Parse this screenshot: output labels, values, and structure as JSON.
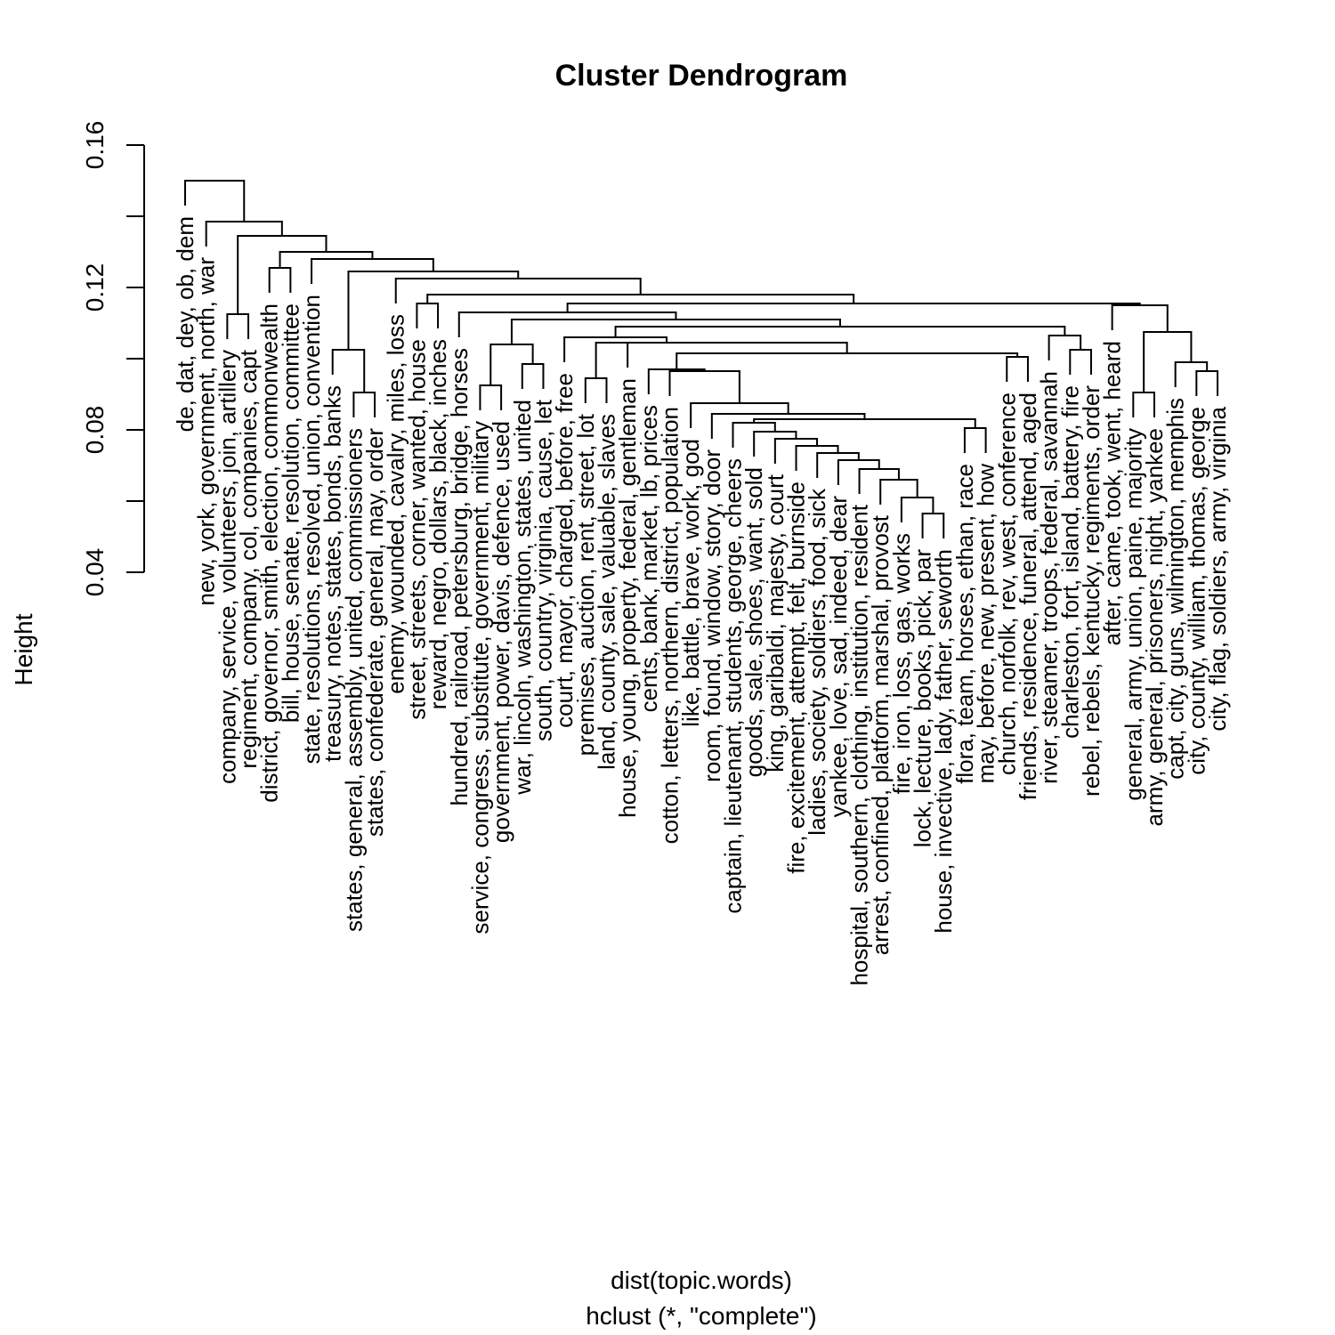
{
  "chart_data": {
    "type": "dendrogram",
    "title": "Cluster Dendrogram",
    "ylabel": "Height",
    "xlabel": "dist(topic.words)",
    "sublabel": "hclust (*, \"complete\")",
    "y_ticks": [
      "0.04",
      "0.08",
      "0.12",
      "0.16"
    ],
    "ylim": [
      0.04,
      0.16
    ],
    "leaves": [
      "de, dat, dey, ob, dem",
      "new, york, government, north, war",
      "company, service, volunteers, join, artillery",
      "regiment, company, col, companies, capt",
      "district, governor, smith, election, commonwealth",
      "bill, house, senate, resolution, committee",
      "state, resolutions, resolved, union, convention",
      "treasury, notes, states, bonds, banks",
      "states, general, assembly, united, commissioners",
      "states, confederate, general, may, order",
      "enemy, wounded, cavalry, miles, loss",
      "street, streets, corner, wanted, house",
      "reward, negro, dollars, black, inches",
      "hundred, railroad, petersburg, bridge, horses",
      "service, congress, substitute, government, military",
      "government, power, davis, defence, used",
      "war, lincoln, washington, states, united",
      "south, country, virginia, cause, let",
      "court, mayor, charged, before, free",
      "premises, auction, rent, street, lot",
      "land, county, sale, valuable, slaves",
      "house, young, property, federal, gentleman",
      "cents, bank, market, lb, prices",
      "cotton, letters, northern, district, population",
      "like, battle, brave, work, god",
      "room, found, window, story, door",
      "captain, lieutenant, students, george, cheers",
      "goods, sale, shoes, want, sold",
      "king, garibaldi, majesty, court",
      "fire, excitement, attempt, felt, burnside",
      "ladies, society, soldiers, food, sick",
      "yankee, love, sad, indeed, dear",
      "hospital, southern, clothing, institution, resident",
      "arrest, confined, platform, marshal, provost",
      "fire, iron, loss, gas, works",
      "lock, lecture, books, pick, par",
      "house, invective, lady, father, seworth",
      "flora, team, horses, ethan, race",
      "may, before, new, present, how",
      "church, norfolk, rev, west, conference",
      "friends, residence, funeral, attend, aged",
      "river, steamer, troops, federal, savannah",
      "charleston, fort, island, battery, fire",
      "rebel, rebels, kentucky, regiments, order",
      "after, came, took, went, heard",
      "general, army, union, paine, majority",
      "army, general, prisoners, night, yankee",
      "capt, city, guns, wilmington, memphis",
      "city, county, william, thomas, george",
      "city, flag, soldiers, army, virginia"
    ],
    "merges": [
      {
        "left": 35,
        "right": 36,
        "height": 0.0565
      },
      {
        "left": 34,
        "right": 50,
        "height": 0.061
      },
      {
        "left": 33,
        "right": 51,
        "height": 0.066
      },
      {
        "left": 32,
        "right": 52,
        "height": 0.069
      },
      {
        "left": 31,
        "right": 53,
        "height": 0.0715
      },
      {
        "left": 30,
        "right": 54,
        "height": 0.0735
      },
      {
        "left": 29,
        "right": 55,
        "height": 0.0755
      },
      {
        "left": 28,
        "right": 56,
        "height": 0.0775
      },
      {
        "left": 27,
        "right": 57,
        "height": 0.0795
      },
      {
        "left": 26,
        "right": 58,
        "height": 0.082
      },
      {
        "left": 37,
        "right": 38,
        "height": 0.0805
      },
      {
        "left": 59,
        "right": 60,
        "height": 0.083
      },
      {
        "left": 25,
        "right": 61,
        "height": 0.0845
      },
      {
        "left": 24,
        "right": 62,
        "height": 0.0875
      },
      {
        "left": 23,
        "right": 63,
        "height": 0.0965
      },
      {
        "left": 22,
        "right": 64,
        "height": 0.097
      },
      {
        "left": 39,
        "right": 40,
        "height": 0.1005
      },
      {
        "left": 65,
        "right": 66,
        "height": 0.1015
      },
      {
        "left": 21,
        "right": 67,
        "height": 0.1045
      },
      {
        "left": 19,
        "right": 20,
        "height": 0.0945
      },
      {
        "left": 68,
        "right": 69,
        "height": 0.1045
      },
      {
        "left": 18,
        "right": 70,
        "height": 0.106
      },
      {
        "left": 42,
        "right": 43,
        "height": 0.1025
      },
      {
        "left": 41,
        "right": 72,
        "height": 0.1065
      },
      {
        "left": 71,
        "right": 73,
        "height": 0.109
      },
      {
        "left": 14,
        "right": 15,
        "height": 0.0925
      },
      {
        "left": 16,
        "right": 17,
        "height": 0.0985
      },
      {
        "left": 75,
        "right": 76,
        "height": 0.104
      },
      {
        "left": 74,
        "right": 77,
        "height": 0.111
      },
      {
        "left": 13,
        "right": 78,
        "height": 0.113
      },
      {
        "left": 48,
        "right": 49,
        "height": 0.0965
      },
      {
        "left": 47,
        "right": 80,
        "height": 0.099
      },
      {
        "left": 45,
        "right": 46,
        "height": 0.0905
      },
      {
        "left": 81,
        "right": 82,
        "height": 0.1075
      },
      {
        "left": 44,
        "right": 83,
        "height": 0.115
      },
      {
        "left": 79,
        "right": 84,
        "height": 0.1155
      },
      {
        "left": 11,
        "right": 12,
        "height": 0.1155
      },
      {
        "left": 85,
        "right": 86,
        "height": 0.118
      },
      {
        "left": 10,
        "right": 87,
        "height": 0.1225
      },
      {
        "left": 8,
        "right": 9,
        "height": 0.0905
      },
      {
        "left": 7,
        "right": 89,
        "height": 0.1025
      },
      {
        "left": 88,
        "right": 90,
        "height": 0.1245
      },
      {
        "left": 4,
        "right": 5,
        "height": 0.1255
      },
      {
        "left": 6,
        "right": 91,
        "height": 0.128
      },
      {
        "left": 92,
        "right": 93,
        "height": 0.13
      },
      {
        "left": 2,
        "right": 3,
        "height": 0.1125
      },
      {
        "left": 94,
        "right": 95,
        "height": 0.1345
      },
      {
        "left": 1,
        "right": 96,
        "height": 0.1385
      },
      {
        "left": 0,
        "right": 97,
        "height": 0.15
      }
    ]
  }
}
